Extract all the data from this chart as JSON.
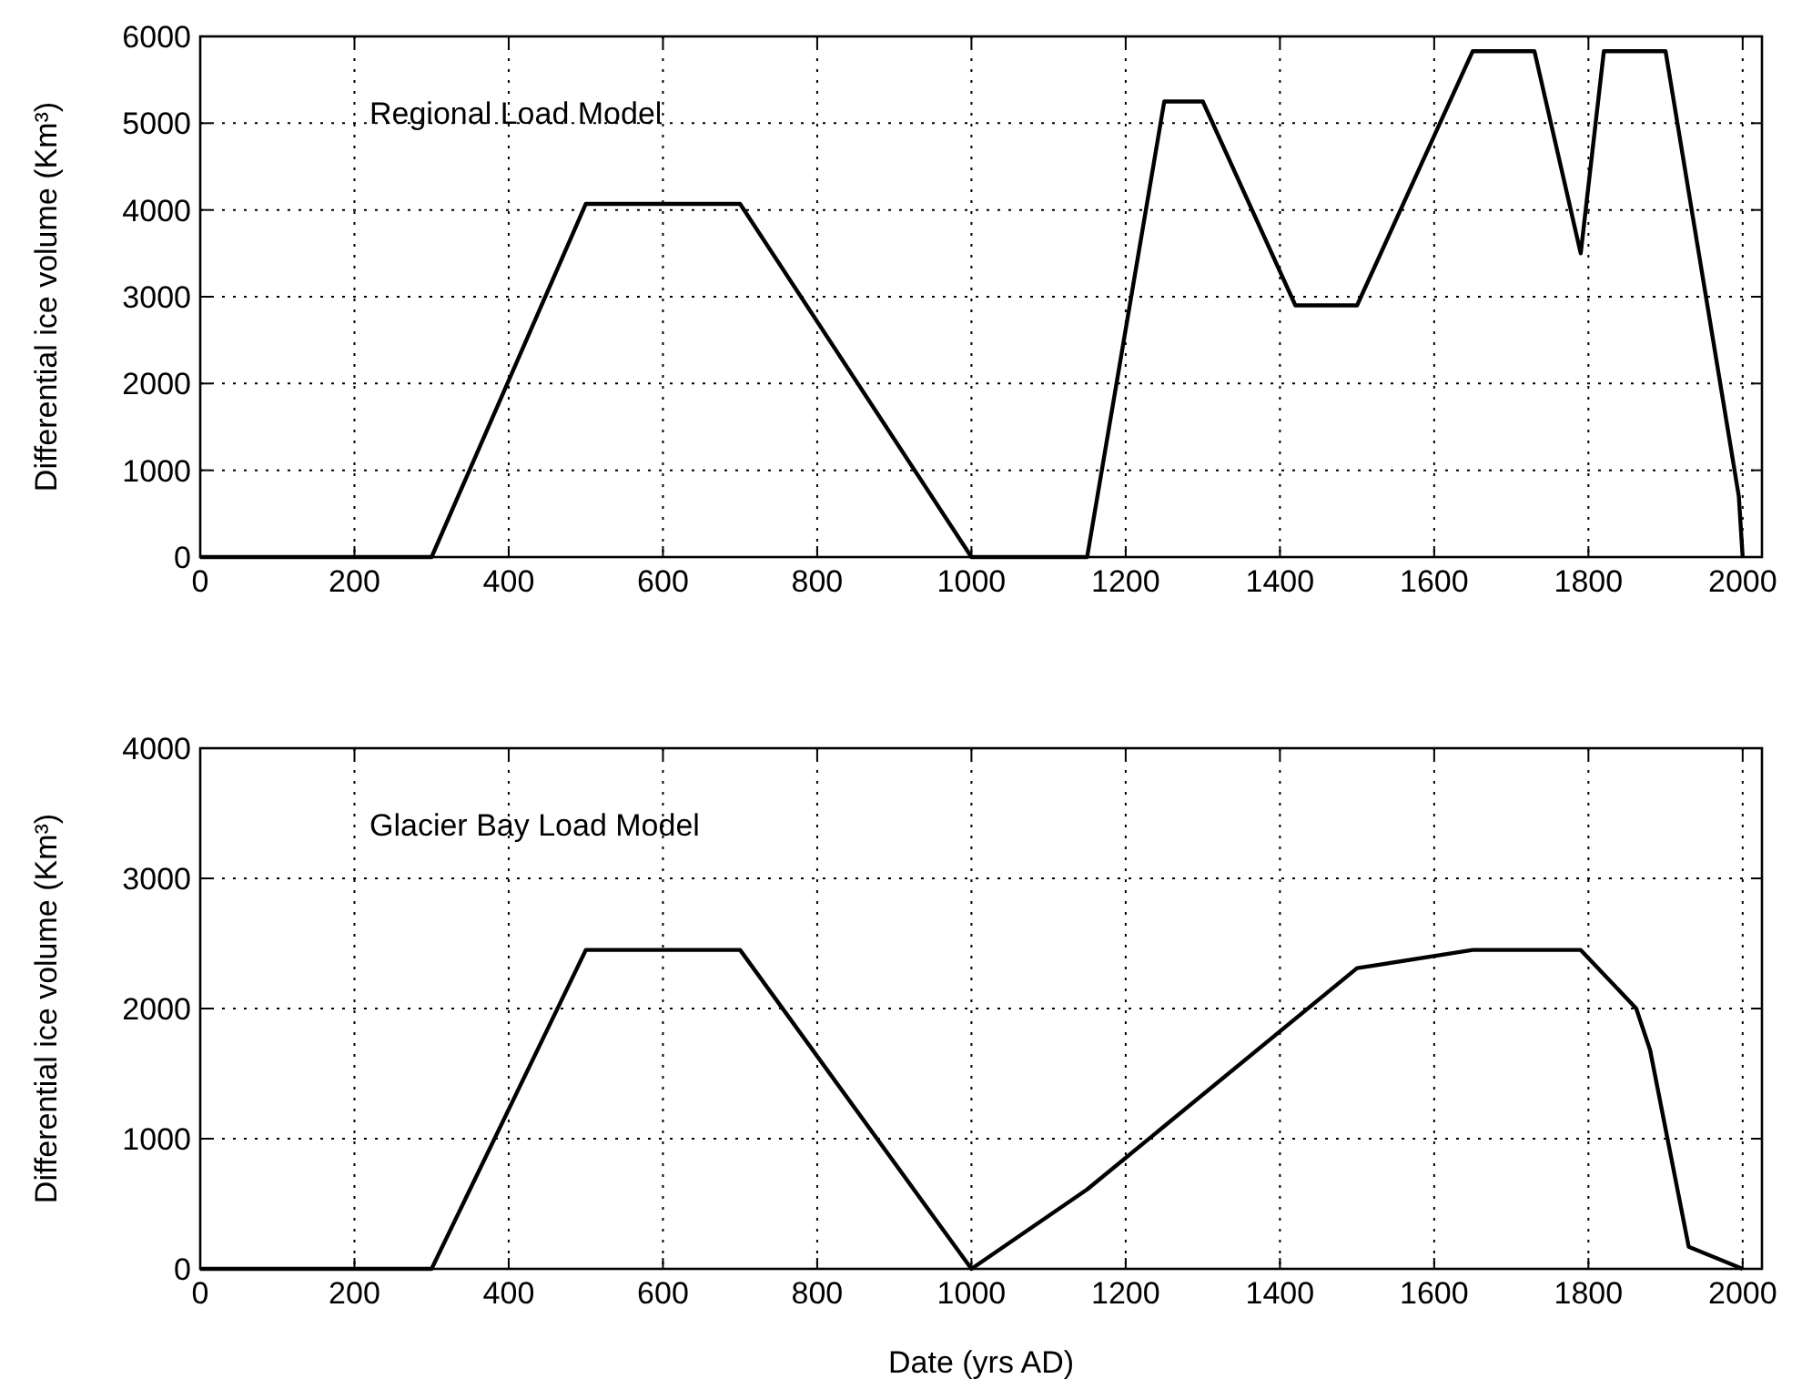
{
  "chart_data": [
    {
      "type": "line",
      "annotations": [
        "Regional Load Model"
      ],
      "ylabel": "Differential ice volume (Km³)",
      "x": [
        0,
        300,
        500,
        700,
        1000,
        1150,
        1250,
        1300,
        1420,
        1500,
        1650,
        1730,
        1790,
        1820,
        1900,
        1995,
        2000
      ],
      "series": [
        {
          "color": "#000000",
          "values": [
            0,
            0,
            4070,
            4070,
            0,
            0,
            5250,
            5250,
            2900,
            2900,
            5830,
            5830,
            3500,
            5830,
            5830,
            700,
            0
          ]
        }
      ],
      "xlim": [
        0,
        2025
      ],
      "ylim": [
        0,
        6000
      ],
      "xticks": [
        0,
        200,
        400,
        600,
        800,
        1000,
        1200,
        1400,
        1600,
        1800,
        2000
      ],
      "yticks": [
        0,
        1000,
        2000,
        3000,
        4000,
        5000,
        6000
      ],
      "grid": true,
      "line_style": "solid",
      "marker": "none"
    },
    {
      "type": "line",
      "annotations": [
        "Glacier Bay Load Model"
      ],
      "ylabel": "Differential ice volume (Km³)",
      "xlabel": "Date (yrs AD)",
      "x": [
        0,
        300,
        500,
        700,
        1000,
        1150,
        1500,
        1650,
        1790,
        1862,
        1880,
        1930,
        2000
      ],
      "series": [
        {
          "color": "#000000",
          "values": [
            0,
            0,
            2450,
            2450,
            0,
            610,
            2310,
            2450,
            2450,
            2000,
            1680,
            170,
            0
          ]
        }
      ],
      "xlim": [
        0,
        2025
      ],
      "ylim": [
        0,
        4000
      ],
      "xticks": [
        0,
        200,
        400,
        600,
        800,
        1000,
        1200,
        1400,
        1600,
        1800,
        2000
      ],
      "yticks": [
        0,
        1000,
        2000,
        3000,
        4000
      ],
      "grid": true,
      "line_style": "solid",
      "marker": "none"
    }
  ]
}
